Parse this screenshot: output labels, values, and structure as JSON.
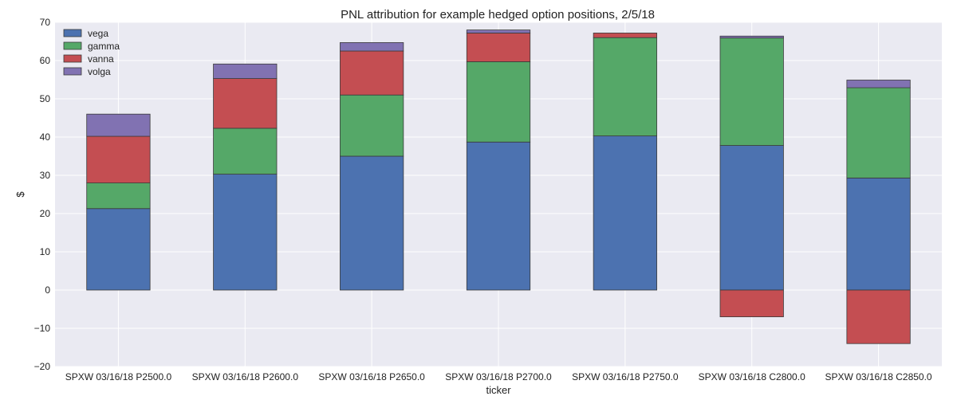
{
  "chart_data": {
    "type": "bar",
    "stacked": true,
    "title": "PNL attribution for example hedged option positions, 2/5/18",
    "xlabel": "ticker",
    "ylabel": "$",
    "ylim": [
      -20,
      70
    ],
    "yticks": [
      -20,
      -10,
      0,
      10,
      20,
      30,
      40,
      50,
      60,
      70
    ],
    "ytick_labels": [
      "−20",
      "−10",
      "0",
      "10",
      "20",
      "30",
      "40",
      "50",
      "60",
      "70"
    ],
    "grid": true,
    "legend_position": "top-left",
    "categories": [
      "SPXW 03/16/18 P2500.0",
      "SPXW 03/16/18 P2600.0",
      "SPXW 03/16/18 P2650.0",
      "SPXW 03/16/18 P2700.0",
      "SPXW 03/16/18 P2750.0",
      "SPXW 03/16/18 C2800.0",
      "SPXW 03/16/18 C2850.0"
    ],
    "series": [
      {
        "name": "vega",
        "color": "#4c72b0",
        "values": [
          21.3,
          30.3,
          35.0,
          38.7,
          40.3,
          37.8,
          29.3
        ]
      },
      {
        "name": "gamma",
        "color": "#55a868",
        "values": [
          6.7,
          12.0,
          16.0,
          21.0,
          25.7,
          28.1,
          23.6
        ]
      },
      {
        "name": "vanna",
        "color": "#c44e52",
        "values": [
          12.2,
          13.0,
          11.5,
          7.5,
          1.2,
          -7.0,
          -14.0
        ]
      },
      {
        "name": "volga",
        "color": "#8172b2",
        "values": [
          5.8,
          3.8,
          2.2,
          0.8,
          0.0,
          0.5,
          2.0
        ]
      }
    ],
    "colors": {
      "background": "#eaeaf2",
      "grid": "#ffffff",
      "bar_edge": "#3a3a3a"
    }
  }
}
